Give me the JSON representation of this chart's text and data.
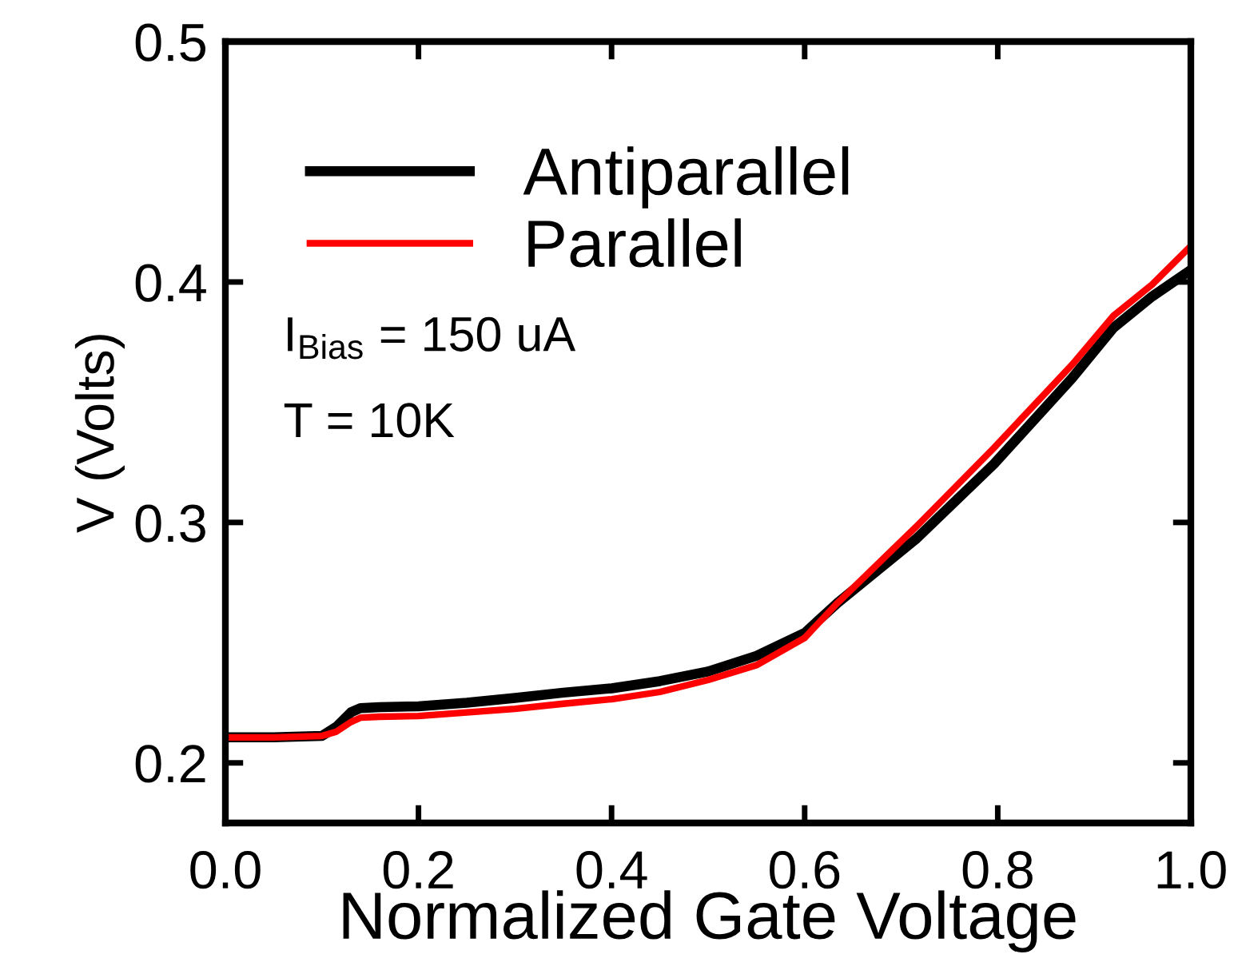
{
  "chart_data": {
    "type": "line",
    "xlabel": "Normalized Gate Voltage",
    "ylabel": "V (Volts)",
    "xlim": [
      0,
      1.0
    ],
    "ylim": [
      0.175,
      0.5
    ],
    "xticks": [
      {
        "value": 0,
        "label": "0.0"
      },
      0.2,
      0.4,
      0.6,
      0.8,
      {
        "value": 1.0,
        "label": "1.0"
      }
    ],
    "yticks": [
      0.2,
      0.3,
      0.4,
      0.5
    ],
    "legend": "top left",
    "marker": "none",
    "line_style": "solid",
    "grid": false,
    "annotations": [
      "I$_{Bias}$ = 150 uA",
      "T = 10K"
    ],
    "series": [
      {
        "name": "Antiparallel",
        "color": "#000000",
        "x": [
          0,
          0.05,
          0.1,
          0.115,
          0.13,
          0.14,
          0.16,
          0.2,
          0.25,
          0.3,
          0.35,
          0.4,
          0.45,
          0.5,
          0.55,
          0.6,
          0.634,
          0.715,
          0.796,
          0.877,
          0.92,
          0.96,
          1.0
        ],
        "values": [
          0.2106,
          0.2106,
          0.2112,
          0.215,
          0.221,
          0.2228,
          0.2232,
          0.2235,
          0.225,
          0.227,
          0.2292,
          0.231,
          0.234,
          0.238,
          0.2445,
          0.254,
          0.2665,
          0.293,
          0.3243,
          0.36,
          0.381,
          0.394,
          0.405
        ]
      },
      {
        "name": "Parallel",
        "color": "#ff0000",
        "x": [
          0,
          0.05,
          0.1,
          0.115,
          0.13,
          0.14,
          0.16,
          0.2,
          0.25,
          0.3,
          0.35,
          0.4,
          0.45,
          0.5,
          0.55,
          0.6,
          0.634,
          0.715,
          0.796,
          0.877,
          0.92,
          0.96,
          1.0
        ],
        "values": [
          0.2106,
          0.2106,
          0.2112,
          0.213,
          0.217,
          0.2188,
          0.2192,
          0.2195,
          0.221,
          0.2225,
          0.2246,
          0.2265,
          0.2295,
          0.2345,
          0.2406,
          0.252,
          0.2665,
          0.298,
          0.331,
          0.3656,
          0.386,
          0.399,
          0.415
        ]
      }
    ]
  }
}
